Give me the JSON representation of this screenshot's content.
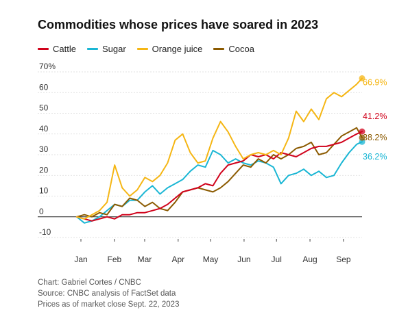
{
  "chart_data": {
    "type": "line",
    "title": "Commodities whose prices have soared in 2023",
    "xlabel": "",
    "ylabel": "",
    "ylim": [
      -10,
      70
    ],
    "y_ticks": [
      "70%",
      "60",
      "50",
      "40",
      "30",
      "20",
      "10",
      "0",
      "-10"
    ],
    "y_tick_values": [
      70,
      60,
      50,
      40,
      30,
      20,
      10,
      0,
      -10
    ],
    "x_ticks": [
      "Jan",
      "Feb",
      "Mar",
      "Apr",
      "May",
      "Jun",
      "Jul",
      "Aug",
      "Sep"
    ],
    "grid": true,
    "legend": "top-left",
    "x_unit": "day-of-year 2023",
    "x": [
      1,
      8,
      15,
      22,
      29,
      36,
      43,
      50,
      57,
      64,
      71,
      78,
      85,
      92,
      99,
      106,
      113,
      120,
      127,
      134,
      141,
      148,
      155,
      162,
      169,
      176,
      183,
      190,
      197,
      204,
      211,
      218,
      225,
      232,
      239,
      246,
      253,
      260,
      265
    ],
    "series": [
      {
        "name": "Cattle",
        "color": "#d0021b",
        "end_label": "41.2%",
        "values": [
          0,
          -1,
          -2,
          -1,
          0,
          -1,
          1,
          1,
          2,
          2,
          3,
          4,
          6,
          9,
          12,
          13,
          14,
          16,
          15,
          21,
          25,
          26,
          27,
          30,
          29,
          30,
          28,
          31,
          30,
          29,
          31,
          33,
          34,
          34,
          35,
          36,
          38,
          40,
          41.2
        ]
      },
      {
        "name": "Sugar",
        "color": "#1ab6d4",
        "end_label": "36.2%",
        "values": [
          0,
          -3,
          -2,
          0,
          3,
          6,
          5,
          8,
          8,
          12,
          15,
          11,
          14,
          16,
          18,
          22,
          25,
          24,
          32,
          30,
          26,
          28,
          26,
          25,
          27,
          26,
          24,
          16,
          20,
          21,
          23,
          20,
          22,
          19,
          20,
          26,
          31,
          35,
          36.2
        ]
      },
      {
        "name": "Orange juice",
        "color": "#f5b614",
        "end_label": "66.9%",
        "values": [
          0,
          -1,
          1,
          3,
          7,
          25,
          14,
          10,
          13,
          19,
          17,
          20,
          26,
          37,
          40,
          31,
          26,
          27,
          38,
          46,
          41,
          34,
          28,
          30,
          31,
          30,
          32,
          30,
          38,
          51,
          46,
          52,
          47,
          57,
          60,
          58,
          61,
          64,
          66.9
        ]
      },
      {
        "name": "Cocoa",
        "color": "#8b5a00",
        "end_label": "38.2%",
        "values": [
          0,
          1,
          0,
          2,
          1,
          6,
          5,
          9,
          8,
          5,
          7,
          4,
          3,
          7,
          12,
          13,
          14,
          13,
          12,
          14,
          17,
          21,
          25,
          24,
          28,
          26,
          30,
          28,
          30,
          33,
          34,
          36,
          30,
          31,
          35,
          39,
          41,
          43,
          38.2
        ]
      }
    ]
  },
  "footer": {
    "credit": "Chart: Gabriel Cortes / CNBC",
    "source": "Source: CNBC analysis of FactSet data",
    "note": "Prices as of market close Sept. 22, 2023"
  }
}
